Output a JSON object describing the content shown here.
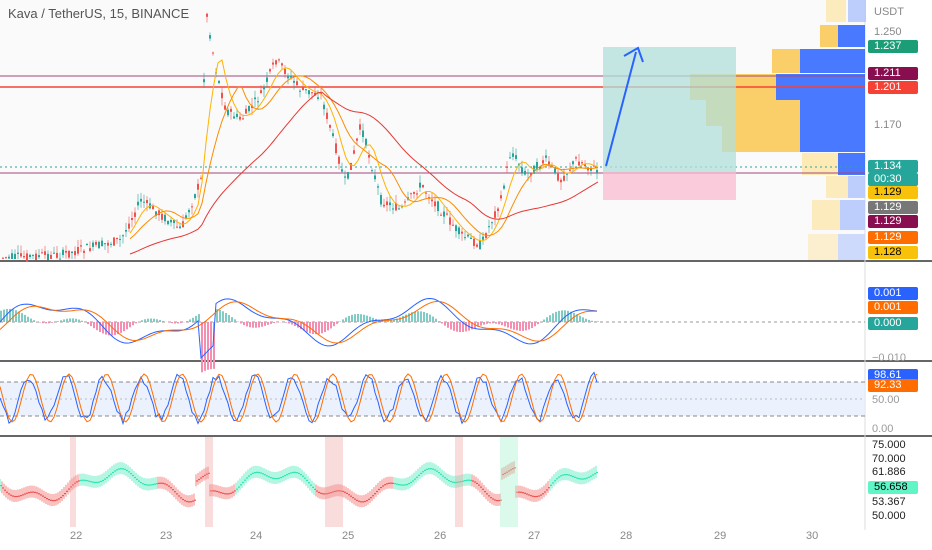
{
  "header": {
    "title": "Kava / TetherUS, 15, BINANCE",
    "currency": "USDT"
  },
  "price_axis": {
    "labels": [
      "1.250",
      "1.170"
    ],
    "tags": [
      {
        "text": "1.237",
        "color": "#1b9e77",
        "fg": "#ffffff"
      },
      {
        "text": "1.211",
        "color": "#880e4f",
        "fg": "#ffffff"
      },
      {
        "text": "1.201",
        "color": "#f44336",
        "fg": "#ffffff"
      },
      {
        "text": "1.134",
        "color": "#26a69a",
        "fg": "#ffffff"
      },
      {
        "text": "00:30",
        "color": "#26a69a",
        "fg": "#ffffff"
      },
      {
        "text": "1.129",
        "color": "#f9c20a",
        "fg": "#000000"
      },
      {
        "text": "1.129",
        "color": "#777777",
        "fg": "#ffffff"
      },
      {
        "text": "1.129",
        "color": "#880e4f",
        "fg": "#ffffff"
      },
      {
        "text": "1.129",
        "color": "#ff6d00",
        "fg": "#ffffff"
      },
      {
        "text": "1.128",
        "color": "#f9c20a",
        "fg": "#000000"
      }
    ]
  },
  "macd_axis": {
    "tags": [
      {
        "text": "0.001",
        "color": "#2962ff",
        "fg": "#ffffff"
      },
      {
        "text": "0.001",
        "color": "#ff6d00",
        "fg": "#ffffff"
      },
      {
        "text": "0.000",
        "color": "#26a69a",
        "fg": "#ffffff"
      }
    ],
    "bottom_label": "−0.010"
  },
  "stoch_axis": {
    "tags": [
      {
        "text": "98.61",
        "color": "#2962ff",
        "fg": "#ffffff"
      },
      {
        "text": "92.33",
        "color": "#ff6d00",
        "fg": "#ffffff"
      }
    ],
    "labels": [
      "50.00",
      "0.00"
    ]
  },
  "rsi_axis": {
    "labels": [
      "75.000",
      "70.000",
      "61.886",
      "53.367",
      "50.000"
    ],
    "current": {
      "text": "56.658",
      "color": "#5ff5c6",
      "fg": "#000000"
    }
  },
  "x_axis": {
    "labels": [
      "22",
      "23",
      "24",
      "25",
      "26",
      "27",
      "28",
      "29",
      "30"
    ]
  },
  "colors": {
    "up": "#26a69a",
    "down": "#ef5350",
    "blue": "#2962ff",
    "orange": "#ff9800",
    "red_ma": "#e53935",
    "hline_purple": "#a3487c",
    "hline_red": "#f44336"
  }
}
